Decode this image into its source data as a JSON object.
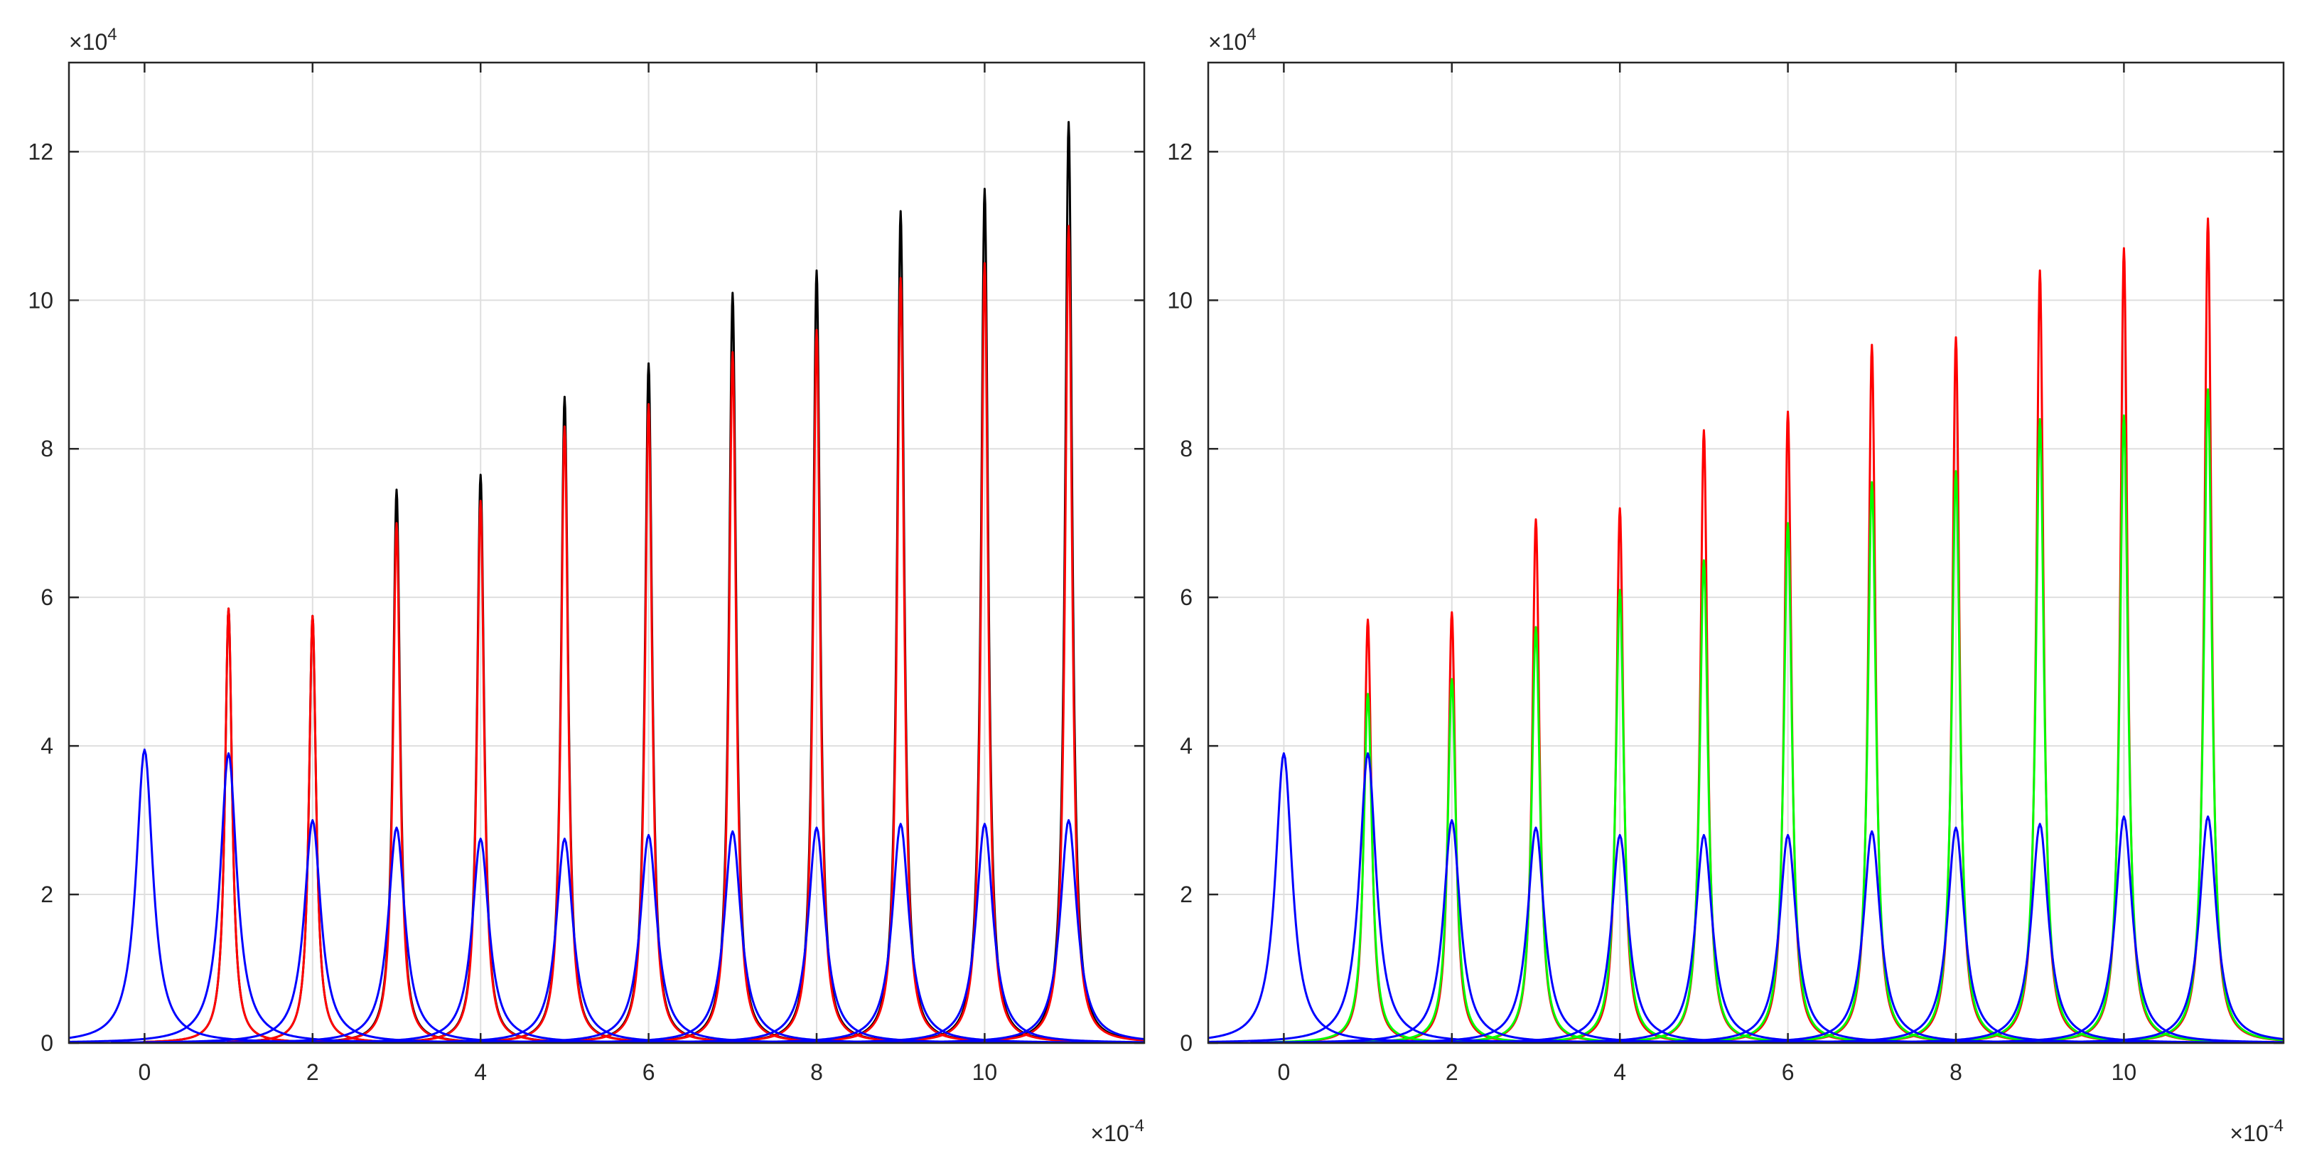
{
  "chart_data": [
    {
      "type": "line",
      "title": "",
      "xlabel": "",
      "ylabel": "",
      "x_exponent_label": "×10",
      "x_exponent_power": "-4",
      "y_exponent_label": "×10",
      "y_exponent_power": "4",
      "xlim": [
        -0.9,
        11.9
      ],
      "ylim": [
        0,
        13.2
      ],
      "grid": true,
      "xticks": [
        0,
        2,
        4,
        6,
        8,
        10
      ],
      "xtick_labels": [
        "0",
        "2",
        "4",
        "6",
        "8",
        "10"
      ],
      "yticks": [
        0,
        2,
        4,
        6,
        8,
        10,
        12
      ],
      "ytick_labels": [
        "0",
        "2",
        "4",
        "6",
        "8",
        "10",
        "12"
      ],
      "peak_positions": [
        0,
        1,
        2,
        3,
        4,
        5,
        6,
        7,
        8,
        9,
        10,
        11
      ],
      "series": [
        {
          "name": "black",
          "color": "#000000",
          "peaks": [
            null,
            5.85,
            5.75,
            7.45,
            7.65,
            8.7,
            9.15,
            10.1,
            10.4,
            11.2,
            11.5,
            12.4
          ],
          "width": 0.085
        },
        {
          "name": "red",
          "color": "#ff0000",
          "peaks": [
            null,
            5.85,
            5.75,
            7.0,
            7.3,
            8.3,
            8.6,
            9.3,
            9.6,
            10.3,
            10.5,
            11.0
          ],
          "width": 0.085
        },
        {
          "name": "blue",
          "color": "#0000ff",
          "peaks": [
            3.95,
            3.9,
            3.0,
            2.9,
            2.75,
            2.75,
            2.8,
            2.85,
            2.9,
            2.95,
            2.95,
            3.0
          ],
          "width": 0.2
        }
      ]
    },
    {
      "type": "line",
      "title": "",
      "xlabel": "",
      "ylabel": "",
      "x_exponent_label": "×10",
      "x_exponent_power": "-4",
      "y_exponent_label": "×10",
      "y_exponent_power": "4",
      "xlim": [
        -0.9,
        11.9
      ],
      "ylim": [
        0,
        13.2
      ],
      "grid": true,
      "xticks": [
        0,
        2,
        4,
        6,
        8,
        10
      ],
      "xtick_labels": [
        "0",
        "2",
        "4",
        "6",
        "8",
        "10"
      ],
      "yticks": [
        0,
        2,
        4,
        6,
        8,
        10,
        12
      ],
      "ytick_labels": [
        "0",
        "2",
        "4",
        "6",
        "8",
        "10",
        "12"
      ],
      "peak_positions": [
        0,
        1,
        2,
        3,
        4,
        5,
        6,
        7,
        8,
        9,
        10,
        11
      ],
      "series": [
        {
          "name": "red",
          "color": "#ff0000",
          "peaks": [
            null,
            5.7,
            5.8,
            7.05,
            7.2,
            8.25,
            8.5,
            9.4,
            9.5,
            10.4,
            10.7,
            11.1
          ],
          "width": 0.085
        },
        {
          "name": "green",
          "color": "#00ff00",
          "peaks": [
            null,
            4.7,
            4.9,
            5.6,
            6.1,
            6.5,
            7.0,
            7.55,
            7.7,
            8.4,
            8.45,
            8.8
          ],
          "width": 0.1
        },
        {
          "name": "blue",
          "color": "#0000ff",
          "peaks": [
            3.9,
            3.9,
            3.0,
            2.9,
            2.8,
            2.8,
            2.8,
            2.85,
            2.9,
            2.95,
            3.05,
            3.05
          ],
          "width": 0.2
        }
      ]
    }
  ]
}
